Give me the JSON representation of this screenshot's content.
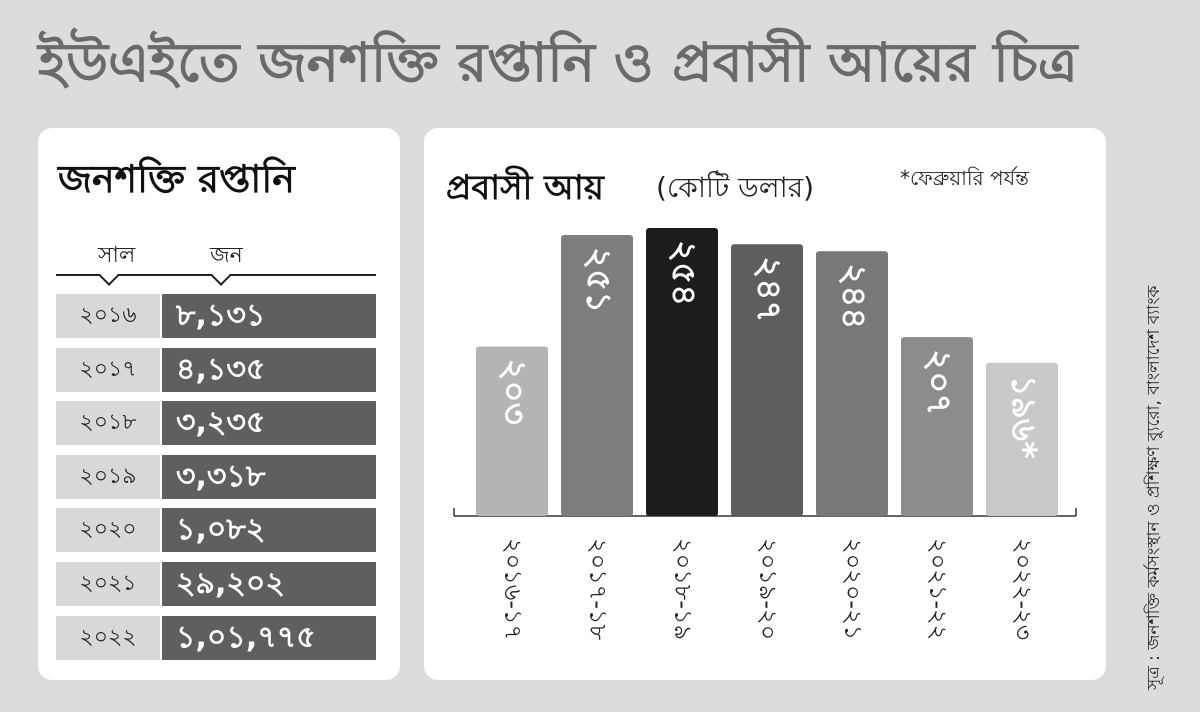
{
  "title": "ইউএইতে জনশক্তি রপ্তানি ও প্রবাসী আয়ের চিত্র",
  "manpower": {
    "title": "জনশক্তি রপ্তানি",
    "col_year": "সাল",
    "col_count": "জন",
    "rows": [
      {
        "year": "২০১৬",
        "count": "৮,১৩১"
      },
      {
        "year": "২০১৭",
        "count": "৪,১৩৫"
      },
      {
        "year": "২০১৮",
        "count": "৩,২৩৫"
      },
      {
        "year": "২০১৯",
        "count": "৩,৩১৮"
      },
      {
        "year": "২০২০",
        "count": "১,০৮২"
      },
      {
        "year": "২০২১",
        "count": "২৯,২০২"
      },
      {
        "year": "২০২২",
        "count": "১,০১,৭৭৫"
      }
    ]
  },
  "remittance": {
    "title": "প্রবাসী আয়",
    "unit": "(কোটি ডলার)",
    "note": "*ফেব্রুয়ারি পর্যন্ত"
  },
  "chart_data": {
    "type": "bar",
    "categories": [
      "২০১৬-১৭",
      "২০১৭-১৮",
      "২০১৮-১৯",
      "২০১৯-২০",
      "২০২০-২১",
      "২০২১-২২",
      "২০২২-২৩"
    ],
    "values": [
      203,
      251,
      254,
      247,
      244,
      207,
      196
    ],
    "value_labels": [
      "২০৩",
      "২৫১",
      "২৫৪",
      "২৪৭",
      "২৪৪",
      "২০৭",
      "১৯৬*"
    ],
    "colors": [
      "#b4b4b4",
      "#7e7e7e",
      "#1c1c1c",
      "#5e5e5e",
      "#787878",
      "#8c8c8c",
      "#c8c8c8"
    ],
    "title": "প্রবাসী আয়",
    "ylabel": "(কোটি ডলার)",
    "grid": false
  },
  "source": "সূত্র : জনশক্তি কর্মসংস্থান ও প্রশিক্ষণ ব্যুরো, বাংলাদেশ ব্যাংক"
}
